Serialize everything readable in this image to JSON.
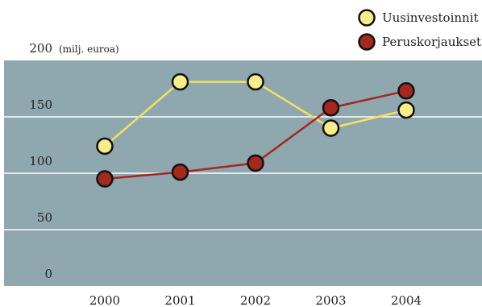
{
  "chart_data": {
    "type": "line",
    "categories": [
      "2000",
      "2001",
      "2002",
      "2003",
      "2004"
    ],
    "ylim": [
      0,
      200
    ],
    "yticks": [
      0,
      50,
      100,
      150,
      200
    ],
    "y_unit_label": "(milj. euroa)",
    "grid": true,
    "legend_placement": "top-right",
    "plot_background": "#8FA7AE",
    "series": [
      {
        "name": "Uusinvestoinnit",
        "values": [
          124,
          181,
          181,
          140,
          156
        ],
        "line_color": "#F2E35C",
        "marker_color": "#F7EE8A"
      },
      {
        "name": "Peruskorjaukset",
        "values": [
          95,
          101,
          109,
          158,
          173
        ],
        "line_color": "#A3281E",
        "marker_color": "#A3281E"
      }
    ]
  }
}
